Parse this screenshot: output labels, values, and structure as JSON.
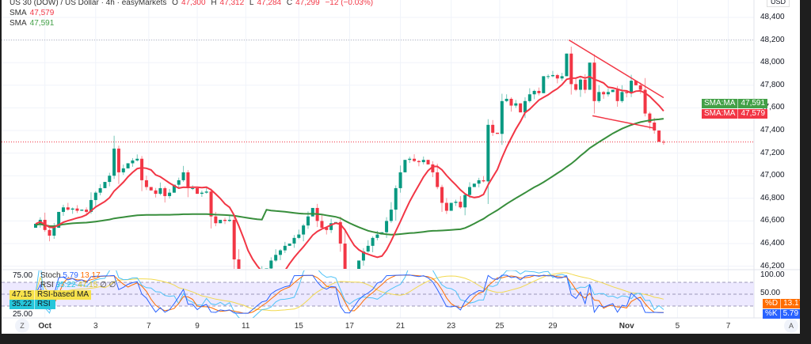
{
  "header": {
    "symbol": "US 30 (DOW) / US Dollar · 4h · easyMarkets",
    "o_label": "O",
    "o": "47,300",
    "h_label": "H",
    "h": "47,312",
    "l_label": "L",
    "l": "47,284",
    "c_label": "C",
    "c": "47,299",
    "change": "−12 (−0.03%)"
  },
  "legend": [
    {
      "name": "SMA",
      "value": "47,579",
      "color": "#f23645"
    },
    {
      "name": "SMA",
      "value": "47,591",
      "color": "#43a047"
    }
  ],
  "osc_legend": {
    "stoch_label": "Stoch",
    "k": "5.79",
    "d": "13.17",
    "rsi_label": "RSI",
    "rsi": "35.22",
    "rsi_ma": "47.15",
    "na1": "∅",
    "na2": "∅"
  },
  "osc_left_badges": [
    {
      "value": "47.15",
      "label": "RSI-based MA",
      "color": "#f7e24b"
    },
    {
      "value": "35.22",
      "label": "RSI",
      "color": "#26c6da"
    }
  ],
  "osc_right_badges": [
    {
      "label": "%D",
      "value": "13.17",
      "color": "#ff6d00"
    },
    {
      "label": "%K",
      "value": "5.79",
      "color": "#2962ff"
    }
  ],
  "price_badges": [
    {
      "label": "SMA:MA",
      "value": "47,591",
      "color": "#43a047"
    },
    {
      "label": "SMA:MA",
      "value": "47,579",
      "color": "#f23645"
    }
  ],
  "currency": "USD",
  "auto_label": "A",
  "zoom_label": "Z",
  "osc_axis_left": [
    "75.00",
    "25.00"
  ],
  "osc_axis_right": [
    "100.00",
    "50.00"
  ],
  "colors": {
    "up": "#089981",
    "down": "#f23645",
    "sma_fast": "#f23645",
    "sma_slow": "#388e3c",
    "stoch_k": "#2962ff",
    "stoch_d": "#ff6d00",
    "rsi": "#4fc3f7",
    "rsi_ma": "#f2d94e"
  },
  "chart_data": {
    "type": "candlestick",
    "title": "US 30 (DOW) / US Dollar · 4h",
    "ylabel": "USD",
    "ylim": [
      46200,
      48500
    ],
    "y_ticks": [
      48400,
      48200,
      48000,
      47800,
      47600,
      47400,
      47200,
      47000,
      46800,
      46600,
      46400,
      46200
    ],
    "x_ticks": [
      {
        "label": "Oct",
        "i": 2
      },
      {
        "label": "3",
        "i": 13
      },
      {
        "label": "7",
        "i": 24.5
      },
      {
        "label": "9",
        "i": 35
      },
      {
        "label": "11",
        "i": 45.5
      },
      {
        "label": "15",
        "i": 57
      },
      {
        "label": "17",
        "i": 68
      },
      {
        "label": "21",
        "i": 79
      },
      {
        "label": "23",
        "i": 90
      },
      {
        "label": "25",
        "i": 100.5
      },
      {
        "label": "29",
        "i": 112
      },
      {
        "label": "Nov",
        "i": 128
      },
      {
        "label": "5",
        "i": 139
      },
      {
        "label": "7",
        "i": 150
      }
    ],
    "first_open": 46540,
    "closes": [
      46575,
      46610,
      46520,
      46470,
      46540,
      46680,
      46720,
      46700,
      46710,
      46690,
      46700,
      46680,
      46785,
      46850,
      46890,
      46945,
      47000,
      47240,
      47030,
      47065,
      47110,
      47135,
      47150,
      46960,
      46900,
      46870,
      46840,
      46890,
      46820,
      46850,
      46920,
      46960,
      47030,
      46890,
      46890,
      46840,
      46850,
      46860,
      46640,
      46580,
      46610,
      46600,
      46610,
      46260,
      46000,
      45900,
      45850,
      45950,
      46050,
      46150,
      46180,
      46250,
      46300,
      46340,
      46380,
      46400,
      46450,
      46480,
      46560,
      46640,
      46715,
      46600,
      46540,
      46520,
      46580,
      46590,
      46400,
      46100,
      46000,
      46120,
      46250,
      46330,
      46380,
      46450,
      46480,
      46500,
      46600,
      46700,
      46890,
      47030,
      47140,
      47150,
      47130,
      47120,
      47140,
      47100,
      47030,
      46900,
      46760,
      46690,
      46760,
      46770,
      46720,
      46830,
      46900,
      46930,
      46960,
      46950,
      47450,
      47380,
      47370,
      47660,
      47680,
      47620,
      47640,
      47560,
      47660,
      47720,
      47750,
      47730,
      47880,
      47880,
      47890,
      47860,
      47880,
      48080,
      47810,
      47760,
      47850,
      47760,
      48000,
      47660,
      47740,
      47720,
      47740,
      47760,
      47660,
      47740,
      47730,
      47840,
      47800,
      47760,
      47550,
      47470,
      47400,
      47300,
      47299
    ],
    "sma_periods": {
      "fast": 9,
      "slow": 50
    },
    "current_price": 47299,
    "recent_high": 48200,
    "trendlines": [
      {
        "from": {
          "i": 115.5,
          "price": 48200
        },
        "to": {
          "i": 136,
          "price": 47690
        }
      },
      {
        "from": {
          "i": 120.6,
          "price": 47530
        },
        "to": {
          "i": 134,
          "price": 47420
        }
      }
    ],
    "oscillators": [
      "Stoch %K",
      "Stoch %D",
      "RSI",
      "RSI-based MA"
    ]
  }
}
